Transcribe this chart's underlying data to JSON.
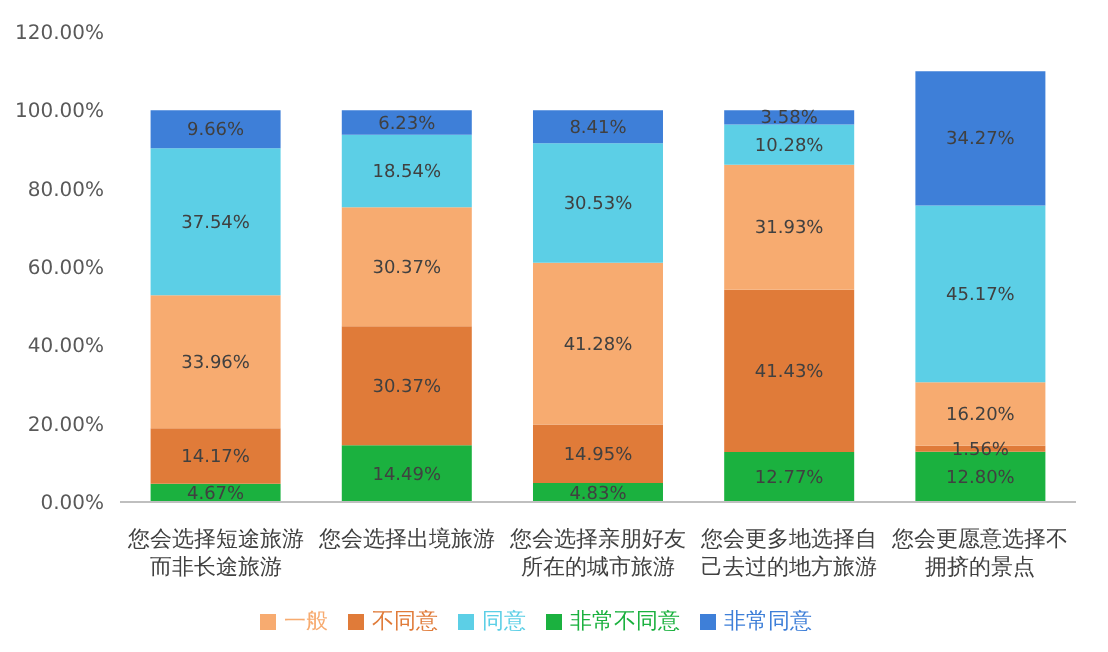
{
  "chart_data": {
    "type": "bar",
    "stacked": true,
    "categories": [
      "您会选择短途旅游而非长途旅游",
      "您会选择出境旅游",
      "您会选择亲朋好友所在的城市旅游",
      "您会更多地选择自己去过的地方旅游",
      "您会更愿意选择不拥挤的景点"
    ],
    "series": [
      {
        "name": "非常不同意",
        "color": "#1bb13f",
        "values": [
          4.67,
          14.49,
          4.83,
          12.77,
          12.8
        ],
        "value_labels": [
          "4.67%",
          "14.49%",
          "4.83%",
          "12.77%",
          "12.80%"
        ]
      },
      {
        "name": "不同意",
        "color": "#e07b39",
        "values": [
          14.17,
          30.37,
          14.95,
          41.43,
          1.56
        ],
        "value_labels": [
          "14.17%",
          "30.37%",
          "14.95%",
          "41.43%",
          "1.56%"
        ]
      },
      {
        "name": "一般",
        "color": "#f7ab70",
        "values": [
          33.96,
          30.37,
          41.28,
          31.93,
          16.2
        ],
        "value_labels": [
          "33.96%",
          "30.37%",
          "41.28%",
          "31.93%",
          "16.20%"
        ]
      },
      {
        "name": "同意",
        "color": "#5ccfe6",
        "values": [
          37.54,
          18.54,
          30.53,
          10.28,
          45.17
        ],
        "value_labels": [
          "37.54%",
          "18.54%",
          "30.53%",
          "10.28%",
          "45.17%"
        ]
      },
      {
        "name": "非常同意",
        "color": "#3e7fd8",
        "values": [
          9.66,
          6.23,
          8.41,
          3.58,
          34.27
        ],
        "value_labels": [
          "9.66%",
          "6.23%",
          "8.41%",
          "3.58%",
          "34.27%"
        ]
      }
    ],
    "ylim": [
      0,
      120
    ],
    "yticks": [
      {
        "value": 0,
        "label": "0.00%"
      },
      {
        "value": 20,
        "label": "20.00%"
      },
      {
        "value": 40,
        "label": "40.00%"
      },
      {
        "value": 60,
        "label": "60.00%"
      },
      {
        "value": 80,
        "label": "80.00%"
      },
      {
        "value": 100,
        "label": "100.00%"
      },
      {
        "value": 120,
        "label": "120.00%"
      }
    ],
    "grid": false,
    "legend": "bottom"
  }
}
